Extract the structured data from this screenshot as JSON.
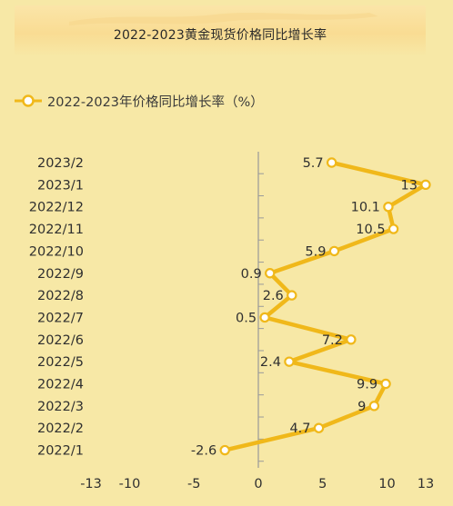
{
  "chart_data": {
    "type": "line",
    "orientation": "horizontal",
    "title": "2022-2023黄金现货价格同比增长率",
    "categories": [
      "2022/1",
      "2022/2",
      "2022/3",
      "2022/4",
      "2022/5",
      "2022/6",
      "2022/7",
      "2022/8",
      "2022/9",
      "2022/10",
      "2022/11",
      "2022/12",
      "2023/1",
      "2023/2"
    ],
    "series": [
      {
        "name": "2022-2023年价格同比增长率（%）",
        "values": [
          -2.6,
          4.7,
          9,
          9.9,
          2.4,
          7.2,
          0.5,
          2.6,
          0.9,
          5.9,
          10.5,
          10.1,
          13,
          5.7
        ],
        "color": "#f0b81a"
      }
    ],
    "x_ticks": [
      -13,
      -10,
      -5,
      0,
      5,
      10,
      13
    ],
    "xlim": [
      -13,
      13
    ],
    "grid": false,
    "legend_position": "top-left",
    "colors": {
      "background": "#f7e8a6",
      "line": "#f0b81a",
      "marker_fill": "#ffffff",
      "axis": "#9a9a9a"
    }
  }
}
